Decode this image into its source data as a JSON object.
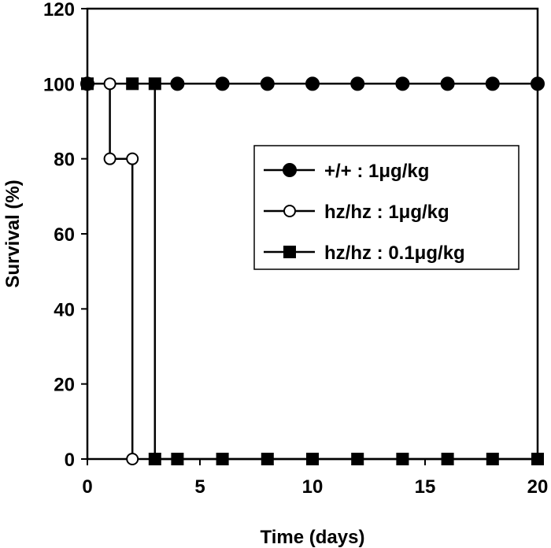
{
  "chart_data": {
    "type": "line",
    "step": true,
    "xlabel": "Time (days)",
    "ylabel": "Survival (%)",
    "xlim": [
      0,
      20
    ],
    "ylim": [
      0,
      120
    ],
    "xticks": [
      0,
      5,
      10,
      15,
      20
    ],
    "yticks": [
      0,
      20,
      40,
      60,
      80,
      100,
      120
    ],
    "grid": false,
    "legend_position": "right-middle",
    "series": [
      {
        "name": "+/+ : 1μg/kg",
        "marker": "filled-circle",
        "x": [
          0,
          4,
          6,
          8,
          10,
          12,
          14,
          16,
          18,
          20
        ],
        "y": [
          100,
          100,
          100,
          100,
          100,
          100,
          100,
          100,
          100,
          100
        ]
      },
      {
        "name": "hz/hz : 1μg/kg",
        "marker": "open-circle",
        "x": [
          1,
          1,
          2,
          2
        ],
        "y": [
          100,
          80,
          80,
          0
        ]
      },
      {
        "name": "hz/hz : 0.1μg/kg",
        "marker": "filled-square",
        "x": [
          0,
          2,
          3,
          3,
          4,
          6,
          8,
          10,
          12,
          14,
          16,
          18,
          20
        ],
        "y": [
          100,
          100,
          100,
          0,
          0,
          0,
          0,
          0,
          0,
          0,
          0,
          0,
          0
        ]
      }
    ]
  }
}
